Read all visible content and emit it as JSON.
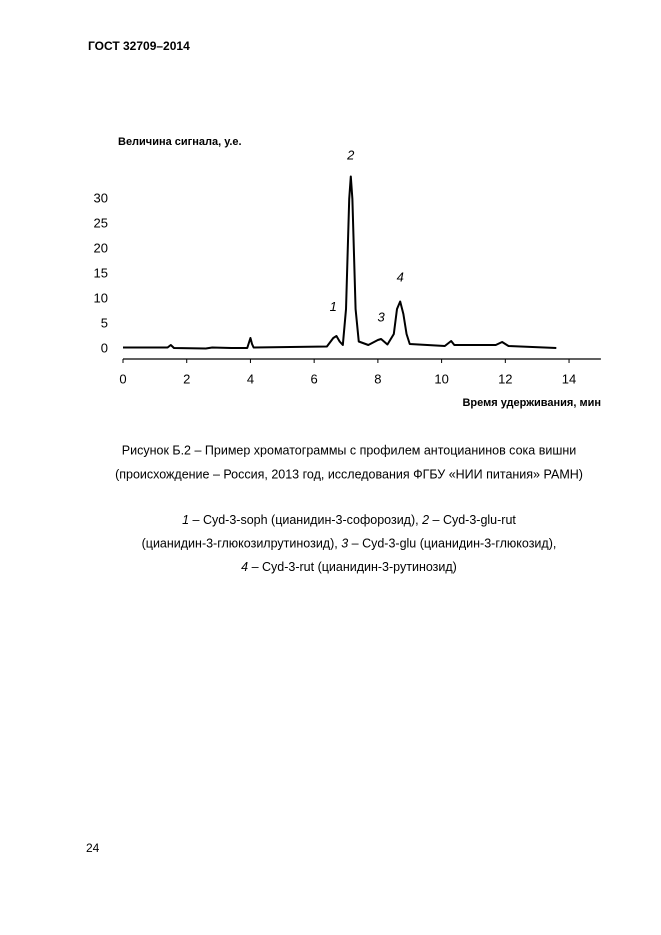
{
  "header": {
    "title": "ГОСТ 32709–2014"
  },
  "chart_data": {
    "type": "line",
    "ylabel": "Величина сигнала, у.е.",
    "xlabel": "Время удерживания, мин",
    "x": [
      0,
      1.4,
      1.5,
      1.6,
      2.6,
      2.8,
      3.4,
      3.9,
      4.0,
      4.05,
      4.1,
      6.4,
      6.6,
      6.7,
      6.8,
      6.9,
      7.0,
      7.1,
      7.15,
      7.2,
      7.3,
      7.4,
      7.7,
      8.0,
      8.1,
      8.3,
      8.5,
      8.6,
      8.7,
      8.8,
      8.9,
      9.0,
      10.1,
      10.3,
      10.4,
      11.7,
      11.9,
      12.1,
      13.6
    ],
    "values": [
      0.3,
      0.3,
      0.8,
      0.2,
      0.1,
      0.3,
      0.2,
      0.2,
      2.2,
      1.0,
      0.3,
      0.5,
      2.2,
      2.6,
      1.5,
      0.8,
      8,
      30,
      34.5,
      30,
      8,
      1.5,
      0.8,
      1.8,
      2.0,
      0.9,
      3,
      8,
      9.5,
      7,
      3,
      1.0,
      0.6,
      1.6,
      0.8,
      0.8,
      1.4,
      0.6,
      0.2
    ],
    "color": "#000000",
    "xlim": [
      0,
      15
    ],
    "ylim": [
      -2,
      37
    ],
    "xticks": [
      0,
      2,
      4,
      6,
      8,
      10,
      12,
      14
    ],
    "yticks": [
      0,
      5,
      10,
      15,
      20,
      25,
      30
    ],
    "annotations": [
      {
        "text": "1",
        "x": 6.6,
        "y": 8.3
      },
      {
        "text": "2",
        "x": 7.15,
        "y": 38.6
      },
      {
        "text": "3",
        "x": 8.1,
        "y": 6.2
      },
      {
        "text": "4",
        "x": 8.7,
        "y": 14.2
      }
    ]
  },
  "caption": [
    "Рисунок Б.2 – Пример хроматограммы с профилем антоцианинов сока вишни",
    "(происхождение – Россия, 2013 год, исследования ФГБУ «НИИ питания» РАМН)"
  ],
  "legend": [
    [
      {
        "num": "1",
        "text": "– Cyd-3-soph (цианидин-3-софорозид),"
      },
      {
        "num": "2",
        "text": "– Cyd-3-glu-rut"
      }
    ],
    [
      {
        "text": "(цианидин-3-глюкозилрутинозид),"
      },
      {
        "num": "3",
        "text": "– Cyd-3-glu (цианидин-3-глюкозид),"
      }
    ],
    [
      {
        "num": "4",
        "text": "– Cyd-3-rut (цианидин-3-рутинозид)"
      }
    ]
  ],
  "page_number": "24"
}
